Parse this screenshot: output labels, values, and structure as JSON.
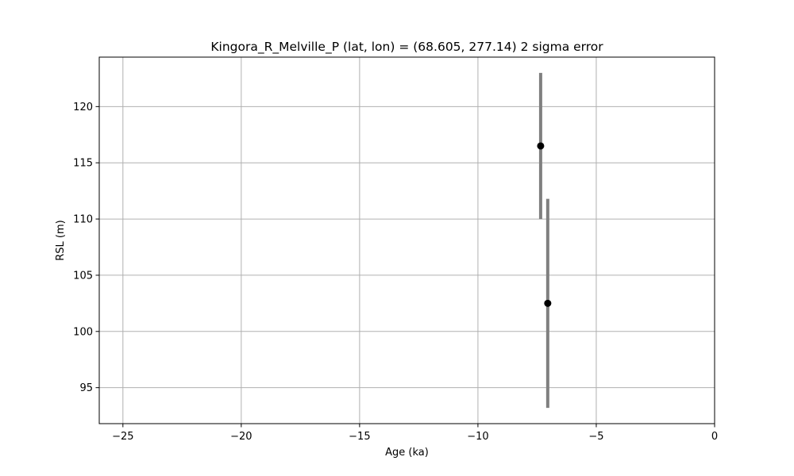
{
  "chart_data": {
    "type": "scatter",
    "title": "Kingora_R_Melville_P (lat, lon) = (68.605, 277.14)  2 sigma error",
    "xlabel": "Age (ka)",
    "ylabel": "RSL (m)",
    "xlim": [
      -26,
      0
    ],
    "ylim": [
      91.8,
      124.4
    ],
    "xticks": [
      -25,
      -20,
      -15,
      -10,
      -5,
      0
    ],
    "xtick_labels": [
      "−25",
      "−20",
      "−15",
      "−10",
      "−5",
      "0"
    ],
    "yticks": [
      95,
      100,
      105,
      110,
      115,
      120
    ],
    "ytick_labels": [
      "95",
      "100",
      "105",
      "110",
      "115",
      "120"
    ],
    "grid": true,
    "legend": false,
    "point_color": "#000000",
    "error_color": "#808080",
    "series": [
      {
        "points": [
          {
            "x": -7.35,
            "y": 116.5,
            "y_low": 110.0,
            "y_high": 123.0
          },
          {
            "x": -7.05,
            "y": 102.5,
            "y_low": 93.2,
            "y_high": 111.8
          }
        ]
      }
    ]
  }
}
